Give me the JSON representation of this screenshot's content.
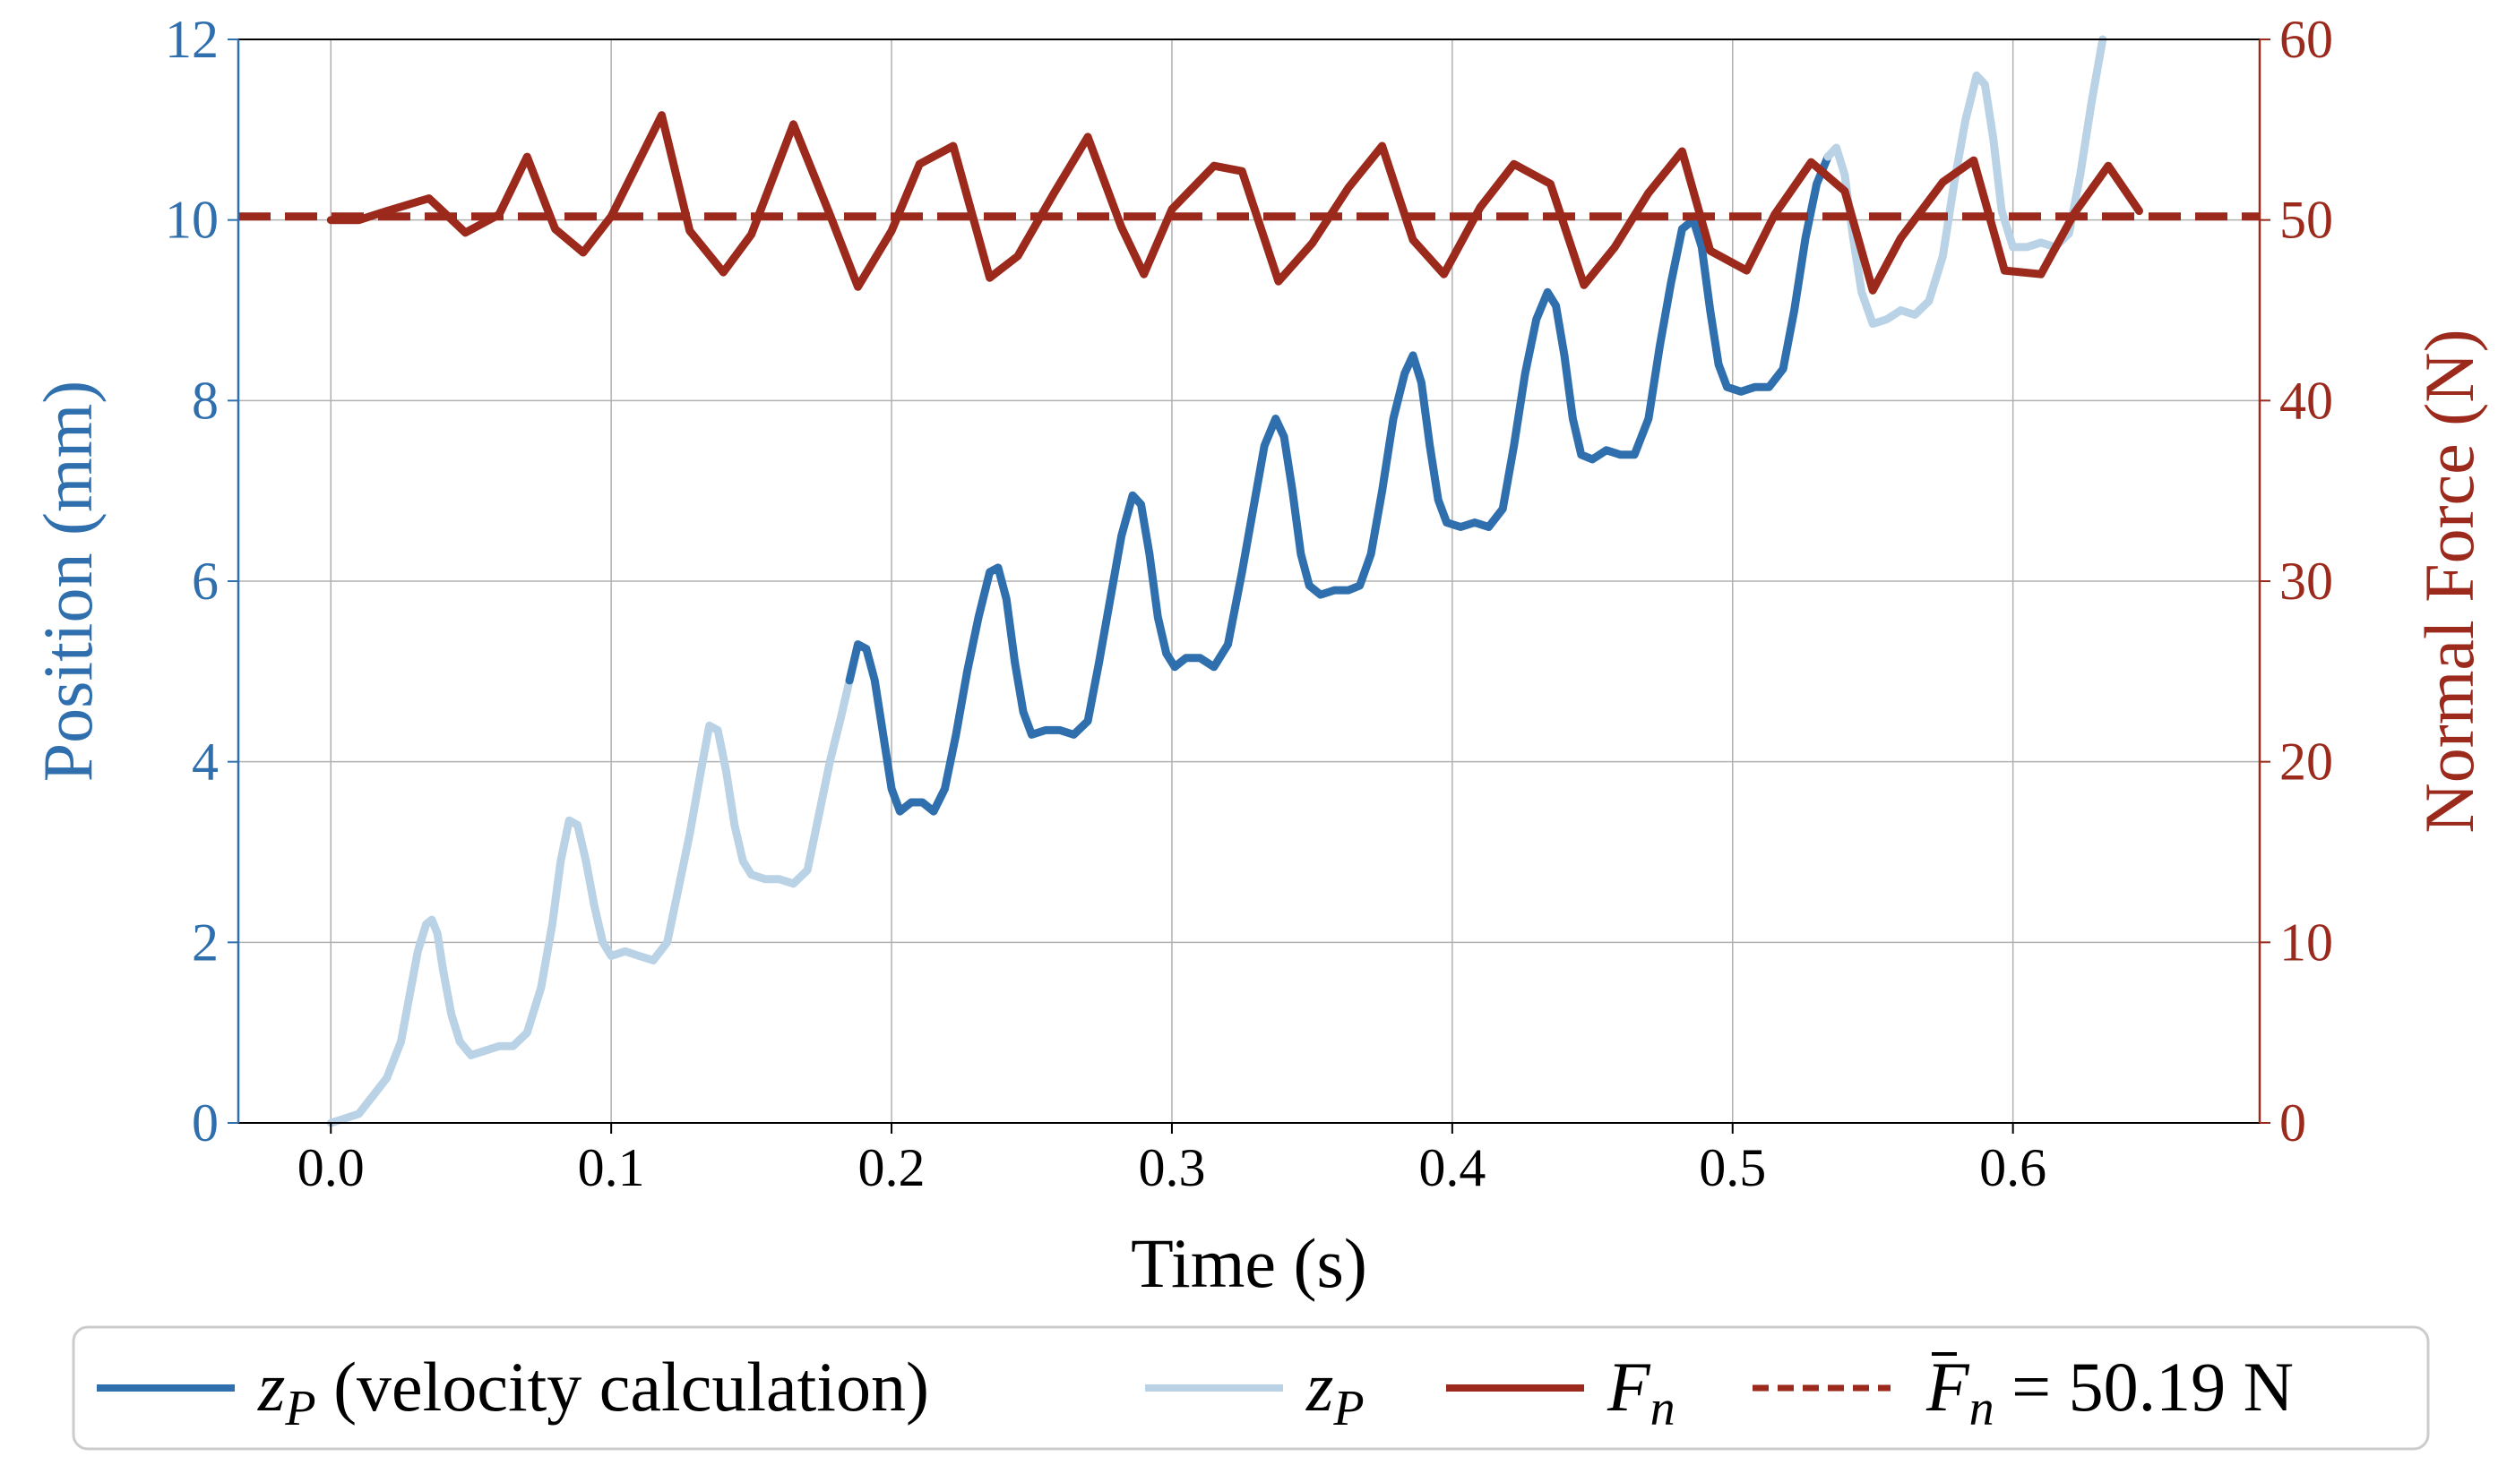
{
  "chart_data": {
    "type": "line",
    "title": "",
    "xlabel": "Time (s)",
    "ylabel_left": "Position (mm)",
    "ylabel_right": "Normal Force (N)",
    "xlim": [
      -0.033,
      0.688
    ],
    "ylim_left": [
      0,
      12
    ],
    "ylim_right": [
      0,
      60
    ],
    "x_ticks": [
      "0.0",
      "0.1",
      "0.2",
      "0.3",
      "0.4",
      "0.5",
      "0.6"
    ],
    "y_left_ticks": [
      "0",
      "2",
      "4",
      "6",
      "8",
      "10",
      "12"
    ],
    "y_right_ticks": [
      "0",
      "10",
      "20",
      "30",
      "40",
      "50",
      "60"
    ],
    "grid": true,
    "legend_position": "bottom",
    "colors": {
      "zp_velocity": "#2f6fad",
      "zp": "#b9d2e6",
      "fn": "#9b2a1c",
      "fn_mean": "#9b2a1c",
      "left_axis": "#2f6fad",
      "right_axis": "#9b2a1c"
    },
    "legend": [
      {
        "key": "zp_velocity",
        "symbol": "z",
        "sub": "P",
        "suffix": " (velocity calculation)"
      },
      {
        "key": "zp",
        "symbol": "z",
        "sub": "P",
        "suffix": ""
      },
      {
        "key": "fn",
        "symbol": "F",
        "sub": "n",
        "suffix": ""
      },
      {
        "key": "fn_mean",
        "symbol": "F",
        "sub": "n",
        "bar": true,
        "suffix": " = 50.19 N"
      }
    ],
    "series": [
      {
        "key": "zp",
        "axis": "left",
        "points": [
          [
            0.0,
            0.0
          ],
          [
            0.005,
            0.05
          ],
          [
            0.01,
            0.1
          ],
          [
            0.015,
            0.3
          ],
          [
            0.02,
            0.5
          ],
          [
            0.025,
            0.9
          ],
          [
            0.028,
            1.4
          ],
          [
            0.031,
            1.9
          ],
          [
            0.034,
            2.2
          ],
          [
            0.036,
            2.25
          ],
          [
            0.038,
            2.1
          ],
          [
            0.04,
            1.7
          ],
          [
            0.043,
            1.2
          ],
          [
            0.046,
            0.9
          ],
          [
            0.05,
            0.75
          ],
          [
            0.055,
            0.8
          ],
          [
            0.06,
            0.85
          ],
          [
            0.065,
            0.85
          ],
          [
            0.07,
            1.0
          ],
          [
            0.075,
            1.5
          ],
          [
            0.079,
            2.2
          ],
          [
            0.082,
            2.9
          ],
          [
            0.085,
            3.35
          ],
          [
            0.088,
            3.3
          ],
          [
            0.091,
            2.9
          ],
          [
            0.094,
            2.4
          ],
          [
            0.097,
            2.0
          ],
          [
            0.1,
            1.85
          ],
          [
            0.105,
            1.9
          ],
          [
            0.11,
            1.85
          ],
          [
            0.115,
            1.8
          ],
          [
            0.12,
            2.0
          ],
          [
            0.124,
            2.6
          ],
          [
            0.128,
            3.2
          ],
          [
            0.132,
            3.9
          ],
          [
            0.135,
            4.4
          ],
          [
            0.138,
            4.35
          ],
          [
            0.141,
            3.9
          ],
          [
            0.144,
            3.3
          ],
          [
            0.147,
            2.9
          ],
          [
            0.15,
            2.75
          ],
          [
            0.155,
            2.7
          ],
          [
            0.16,
            2.7
          ],
          [
            0.165,
            2.65
          ],
          [
            0.17,
            2.8
          ],
          [
            0.174,
            3.4
          ],
          [
            0.178,
            4.0
          ],
          [
            0.182,
            4.5
          ],
          [
            0.185,
            4.9
          ],
          [
            0.188,
            5.3
          ]
        ]
      },
      {
        "key": "zp_velocity",
        "axis": "left",
        "points": [
          [
            0.185,
            4.9
          ],
          [
            0.188,
            5.3
          ],
          [
            0.191,
            5.25
          ],
          [
            0.194,
            4.9
          ],
          [
            0.197,
            4.3
          ],
          [
            0.2,
            3.7
          ],
          [
            0.203,
            3.45
          ],
          [
            0.207,
            3.55
          ],
          [
            0.211,
            3.55
          ],
          [
            0.215,
            3.45
          ],
          [
            0.219,
            3.7
          ],
          [
            0.223,
            4.3
          ],
          [
            0.227,
            5.0
          ],
          [
            0.231,
            5.6
          ],
          [
            0.235,
            6.1
          ],
          [
            0.238,
            6.15
          ],
          [
            0.241,
            5.8
          ],
          [
            0.244,
            5.1
          ],
          [
            0.247,
            4.55
          ],
          [
            0.25,
            4.3
          ],
          [
            0.255,
            4.35
          ],
          [
            0.26,
            4.35
          ],
          [
            0.265,
            4.3
          ],
          [
            0.27,
            4.45
          ],
          [
            0.274,
            5.1
          ],
          [
            0.278,
            5.8
          ],
          [
            0.282,
            6.5
          ],
          [
            0.286,
            6.95
          ],
          [
            0.289,
            6.85
          ],
          [
            0.292,
            6.3
          ],
          [
            0.295,
            5.6
          ],
          [
            0.298,
            5.2
          ],
          [
            0.301,
            5.05
          ],
          [
            0.305,
            5.15
          ],
          [
            0.31,
            5.15
          ],
          [
            0.315,
            5.05
          ],
          [
            0.32,
            5.3
          ],
          [
            0.325,
            6.1
          ],
          [
            0.329,
            6.8
          ],
          [
            0.333,
            7.5
          ],
          [
            0.337,
            7.8
          ],
          [
            0.34,
            7.6
          ],
          [
            0.343,
            7.0
          ],
          [
            0.346,
            6.3
          ],
          [
            0.349,
            5.95
          ],
          [
            0.353,
            5.85
          ],
          [
            0.358,
            5.9
          ],
          [
            0.363,
            5.9
          ],
          [
            0.367,
            5.95
          ],
          [
            0.371,
            6.3
          ],
          [
            0.375,
            7.0
          ],
          [
            0.379,
            7.8
          ],
          [
            0.383,
            8.3
          ],
          [
            0.386,
            8.5
          ],
          [
            0.389,
            8.2
          ],
          [
            0.392,
            7.5
          ],
          [
            0.395,
            6.9
          ],
          [
            0.398,
            6.65
          ],
          [
            0.403,
            6.6
          ],
          [
            0.408,
            6.65
          ],
          [
            0.413,
            6.6
          ],
          [
            0.418,
            6.8
          ],
          [
            0.422,
            7.5
          ],
          [
            0.426,
            8.3
          ],
          [
            0.43,
            8.9
          ],
          [
            0.434,
            9.2
          ],
          [
            0.437,
            9.05
          ],
          [
            0.44,
            8.5
          ],
          [
            0.443,
            7.8
          ],
          [
            0.446,
            7.4
          ],
          [
            0.45,
            7.35
          ],
          [
            0.455,
            7.45
          ],
          [
            0.46,
            7.4
          ],
          [
            0.465,
            7.4
          ],
          [
            0.47,
            7.8
          ],
          [
            0.474,
            8.6
          ],
          [
            0.478,
            9.3
          ],
          [
            0.482,
            9.9
          ],
          [
            0.486,
            10.0
          ],
          [
            0.489,
            9.7
          ],
          [
            0.492,
            9.0
          ],
          [
            0.495,
            8.4
          ],
          [
            0.498,
            8.15
          ],
          [
            0.503,
            8.1
          ],
          [
            0.508,
            8.15
          ],
          [
            0.513,
            8.15
          ],
          [
            0.518,
            8.35
          ],
          [
            0.522,
            9.0
          ],
          [
            0.526,
            9.8
          ],
          [
            0.53,
            10.4
          ],
          [
            0.534,
            10.7
          ]
        ]
      },
      {
        "key": "zp",
        "axis": "left",
        "points": [
          [
            0.534,
            10.7
          ],
          [
            0.537,
            10.8
          ],
          [
            0.54,
            10.5
          ],
          [
            0.543,
            9.8
          ],
          [
            0.546,
            9.2
          ],
          [
            0.55,
            8.85
          ],
          [
            0.555,
            8.9
          ],
          [
            0.56,
            9.0
          ],
          [
            0.565,
            8.95
          ],
          [
            0.57,
            9.1
          ],
          [
            0.575,
            9.6
          ],
          [
            0.579,
            10.4
          ],
          [
            0.583,
            11.1
          ],
          [
            0.587,
            11.6
          ],
          [
            0.59,
            11.5
          ],
          [
            0.593,
            10.9
          ],
          [
            0.596,
            10.1
          ],
          [
            0.6,
            9.7
          ],
          [
            0.605,
            9.7
          ],
          [
            0.61,
            9.75
          ],
          [
            0.615,
            9.7
          ],
          [
            0.62,
            9.85
          ],
          [
            0.624,
            10.5
          ],
          [
            0.628,
            11.3
          ],
          [
            0.632,
            12.0
          ]
        ]
      },
      {
        "key": "fn",
        "axis": "right",
        "points": [
          [
            0.0,
            50.0
          ],
          [
            0.01,
            50.0
          ],
          [
            0.02,
            50.5
          ],
          [
            0.035,
            51.2
          ],
          [
            0.048,
            49.3
          ],
          [
            0.06,
            50.3
          ],
          [
            0.07,
            53.5
          ],
          [
            0.08,
            49.5
          ],
          [
            0.09,
            48.2
          ],
          [
            0.1,
            50.2
          ],
          [
            0.118,
            55.8
          ],
          [
            0.128,
            49.4
          ],
          [
            0.14,
            47.1
          ],
          [
            0.15,
            49.2
          ],
          [
            0.165,
            55.3
          ],
          [
            0.178,
            50.3
          ],
          [
            0.188,
            46.3
          ],
          [
            0.2,
            49.4
          ],
          [
            0.21,
            53.1
          ],
          [
            0.222,
            54.1
          ],
          [
            0.235,
            46.8
          ],
          [
            0.245,
            48.0
          ],
          [
            0.258,
            51.5
          ],
          [
            0.27,
            54.6
          ],
          [
            0.282,
            49.6
          ],
          [
            0.29,
            47.0
          ],
          [
            0.3,
            50.6
          ],
          [
            0.315,
            53.0
          ],
          [
            0.325,
            52.7
          ],
          [
            0.338,
            46.6
          ],
          [
            0.35,
            48.7
          ],
          [
            0.363,
            51.8
          ],
          [
            0.375,
            54.1
          ],
          [
            0.386,
            48.9
          ],
          [
            0.397,
            47.0
          ],
          [
            0.41,
            50.7
          ],
          [
            0.422,
            53.1
          ],
          [
            0.435,
            52.0
          ],
          [
            0.447,
            46.4
          ],
          [
            0.458,
            48.5
          ],
          [
            0.47,
            51.5
          ],
          [
            0.482,
            53.8
          ],
          [
            0.492,
            48.3
          ],
          [
            0.505,
            47.2
          ],
          [
            0.515,
            50.3
          ],
          [
            0.528,
            53.2
          ],
          [
            0.54,
            51.6
          ],
          [
            0.55,
            46.1
          ],
          [
            0.56,
            49.0
          ],
          [
            0.575,
            52.1
          ],
          [
            0.586,
            53.3
          ],
          [
            0.597,
            47.2
          ],
          [
            0.61,
            47.0
          ],
          [
            0.622,
            50.4
          ],
          [
            0.634,
            53.0
          ],
          [
            0.645,
            50.5
          ]
        ]
      },
      {
        "key": "fn_mean",
        "axis": "right",
        "dashed": true,
        "points": [
          [
            -0.033,
            50.19
          ],
          [
            0.688,
            50.19
          ]
        ]
      }
    ]
  }
}
